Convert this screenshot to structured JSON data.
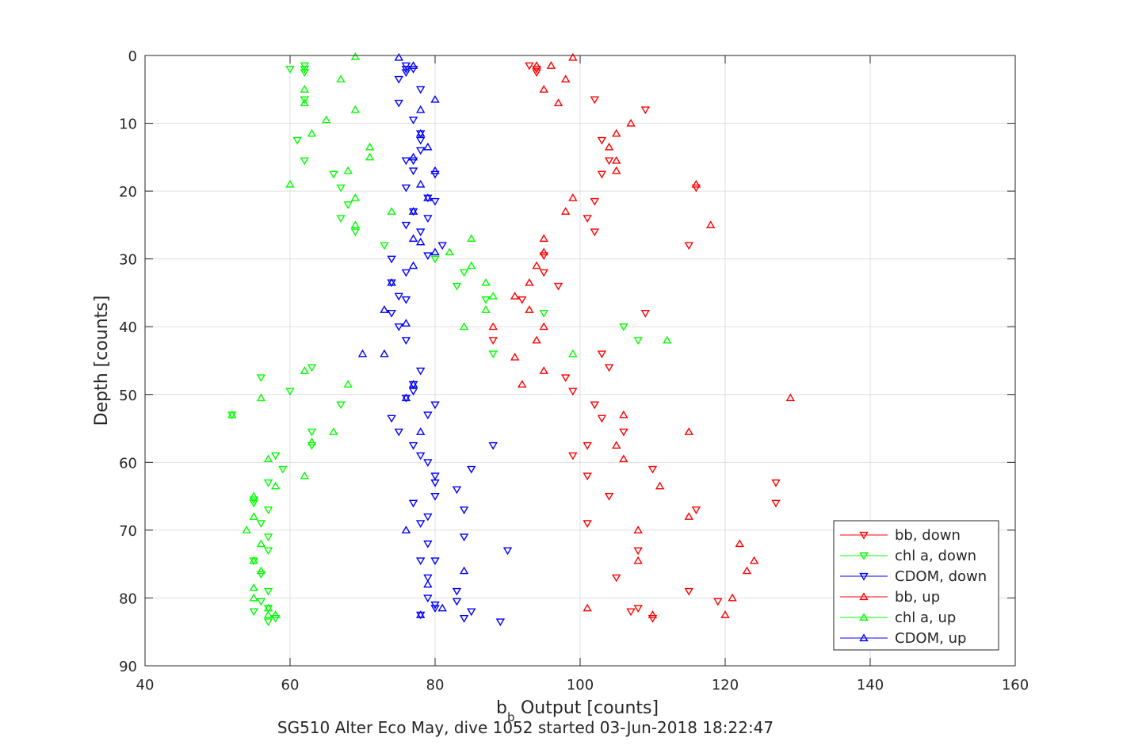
{
  "chart_data": {
    "type": "scatter",
    "title": "SG510 Alter Eco May, dive 1052 started 03-Jun-2018 18:22:47",
    "xlabel_main": "b",
    "xlabel_sub": "b",
    "xlabel_rest": " Output [counts]",
    "ylabel": "Depth [counts]",
    "xlim": [
      40,
      160
    ],
    "ylim": [
      0,
      90
    ],
    "y_reversed": true,
    "x_ticks": [
      40,
      60,
      80,
      100,
      120,
      140,
      160
    ],
    "y_ticks": [
      0,
      10,
      20,
      30,
      40,
      50,
      60,
      70,
      80,
      90
    ],
    "grid": true,
    "legend_position": "bottom-right",
    "series": [
      {
        "name": "bb, down",
        "color": "#ff0000",
        "marker": "triangle-down",
        "points": [
          [
            93,
            1.5
          ],
          [
            94,
            2
          ],
          [
            94,
            2.5
          ],
          [
            102,
            6.5
          ],
          [
            109,
            8
          ],
          [
            103,
            12.5
          ],
          [
            104,
            15.5
          ],
          [
            103,
            17.5
          ],
          [
            116,
            19.5
          ],
          [
            102,
            21.5
          ],
          [
            101,
            24
          ],
          [
            102,
            26
          ],
          [
            115,
            28
          ],
          [
            95,
            29.5
          ],
          [
            95,
            32
          ],
          [
            97,
            34
          ],
          [
            92,
            36
          ],
          [
            109,
            38
          ],
          [
            88,
            42
          ],
          [
            103,
            44
          ],
          [
            104,
            46
          ],
          [
            98,
            47.5
          ],
          [
            99,
            49.5
          ],
          [
            102,
            51.5
          ],
          [
            103,
            53.5
          ],
          [
            106,
            55.5
          ],
          [
            101,
            57.5
          ],
          [
            99,
            59
          ],
          [
            110,
            61
          ],
          [
            101,
            62
          ],
          [
            104,
            65
          ],
          [
            127,
            63
          ],
          [
            127,
            66
          ],
          [
            116,
            67
          ],
          [
            101,
            69
          ],
          [
            108,
            73
          ],
          [
            105,
            77
          ],
          [
            115,
            79
          ],
          [
            119,
            80.5
          ],
          [
            108,
            81.5
          ],
          [
            107,
            82
          ],
          [
            110,
            83
          ]
        ]
      },
      {
        "name": "chl a, down",
        "color": "#00ff00",
        "marker": "triangle-down",
        "points": [
          [
            60,
            2
          ],
          [
            62,
            1.5
          ],
          [
            62,
            2
          ],
          [
            62,
            2.5
          ],
          [
            62,
            6.5
          ],
          [
            61,
            12.5
          ],
          [
            62,
            15.5
          ],
          [
            66,
            17.5
          ],
          [
            67,
            19.5
          ],
          [
            68,
            22
          ],
          [
            67,
            24
          ],
          [
            69,
            26
          ],
          [
            73,
            28
          ],
          [
            80,
            30
          ],
          [
            84,
            32
          ],
          [
            83,
            34
          ],
          [
            87,
            36
          ],
          [
            95,
            38
          ],
          [
            106,
            40
          ],
          [
            108,
            42
          ],
          [
            88,
            44
          ],
          [
            63,
            46
          ],
          [
            56,
            47.5
          ],
          [
            60,
            49.5
          ],
          [
            67,
            51.5
          ],
          [
            52,
            53
          ],
          [
            63,
            55.5
          ],
          [
            63,
            57.5
          ],
          [
            58,
            59
          ],
          [
            59,
            61
          ],
          [
            57,
            63
          ],
          [
            55,
            65.5
          ],
          [
            55,
            66
          ],
          [
            57,
            67
          ],
          [
            56,
            69
          ],
          [
            57,
            71
          ],
          [
            57,
            73
          ],
          [
            55,
            74.5
          ],
          [
            56,
            76.5
          ],
          [
            57,
            79
          ],
          [
            56,
            80.5
          ],
          [
            57,
            81.5
          ],
          [
            55,
            82
          ],
          [
            58,
            83
          ],
          [
            57,
            83.5
          ]
        ]
      },
      {
        "name": "CDOM, down",
        "color": "#0000ff",
        "marker": "triangle-down",
        "points": [
          [
            76,
            1.5
          ],
          [
            76,
            2
          ],
          [
            76,
            2.5
          ],
          [
            77,
            2
          ],
          [
            75,
            3.5
          ],
          [
            78,
            5
          ],
          [
            75,
            7
          ],
          [
            77,
            9.5
          ],
          [
            78,
            11.5
          ],
          [
            78,
            12.5
          ],
          [
            78,
            14
          ],
          [
            77,
            15.5
          ],
          [
            76,
            15.5
          ],
          [
            77,
            17
          ],
          [
            80,
            17.5
          ],
          [
            76,
            19.5
          ],
          [
            79,
            21
          ],
          [
            80,
            21.5
          ],
          [
            77,
            23
          ],
          [
            79,
            24
          ],
          [
            76,
            25
          ],
          [
            78,
            26
          ],
          [
            81,
            28
          ],
          [
            79,
            29.5
          ],
          [
            74,
            30
          ],
          [
            76,
            32
          ],
          [
            74,
            33.5
          ],
          [
            75,
            35.5
          ],
          [
            76,
            36
          ],
          [
            74,
            38
          ],
          [
            75,
            40
          ],
          [
            76,
            42
          ],
          [
            78,
            46.5
          ],
          [
            77,
            48.5
          ],
          [
            77,
            49.5
          ],
          [
            76,
            50.5
          ],
          [
            80,
            51.5
          ],
          [
            79,
            53
          ],
          [
            74,
            53.5
          ],
          [
            75,
            55.5
          ],
          [
            77,
            57.5
          ],
          [
            88,
            57.5
          ],
          [
            78,
            59
          ],
          [
            79,
            60
          ],
          [
            80,
            62
          ],
          [
            80,
            63
          ],
          [
            85,
            61
          ],
          [
            83,
            64
          ],
          [
            80,
            65
          ],
          [
            77,
            66
          ],
          [
            84,
            67
          ],
          [
            79,
            68
          ],
          [
            78,
            69
          ],
          [
            84,
            71
          ],
          [
            79,
            72
          ],
          [
            90,
            73
          ],
          [
            78,
            74.5
          ],
          [
            80,
            74.5
          ],
          [
            79,
            77
          ],
          [
            83,
            79
          ],
          [
            79,
            80
          ],
          [
            83,
            80.5
          ],
          [
            80,
            81
          ],
          [
            80,
            81.5
          ],
          [
            78,
            82.5
          ],
          [
            84,
            83
          ],
          [
            85,
            82
          ],
          [
            89,
            83.5
          ]
        ]
      },
      {
        "name": "bb, up",
        "color": "#ff0000",
        "marker": "triangle-up",
        "points": [
          [
            99,
            0.3
          ],
          [
            94,
            1.5
          ],
          [
            96,
            1.5
          ],
          [
            98,
            3.5
          ],
          [
            95,
            5
          ],
          [
            97,
            7
          ],
          [
            107,
            10
          ],
          [
            105,
            11.5
          ],
          [
            104,
            13.5
          ],
          [
            105,
            15.5
          ],
          [
            105,
            17
          ],
          [
            116,
            19
          ],
          [
            99,
            21
          ],
          [
            98,
            23
          ],
          [
            118,
            25
          ],
          [
            95,
            27
          ],
          [
            95,
            29
          ],
          [
            94,
            31
          ],
          [
            93,
            33.5
          ],
          [
            91,
            35.5
          ],
          [
            93,
            37.5
          ],
          [
            95,
            40
          ],
          [
            88,
            40
          ],
          [
            94,
            42
          ],
          [
            91,
            44.5
          ],
          [
            95,
            46.5
          ],
          [
            92,
            48.5
          ],
          [
            129,
            50.5
          ],
          [
            106,
            53
          ],
          [
            115,
            55.5
          ],
          [
            105,
            57.5
          ],
          [
            106,
            59.5
          ],
          [
            111,
            63.5
          ],
          [
            115,
            68
          ],
          [
            108,
            70
          ],
          [
            122,
            72
          ],
          [
            124,
            74.5
          ],
          [
            108,
            74.5
          ],
          [
            123,
            76
          ],
          [
            121,
            80
          ],
          [
            101,
            81.5
          ],
          [
            120,
            82.5
          ],
          [
            110,
            82.5
          ]
        ]
      },
      {
        "name": "chl a, up",
        "color": "#00ff00",
        "marker": "triangle-up",
        "points": [
          [
            69,
            0.2
          ],
          [
            67,
            3.5
          ],
          [
            62,
            5
          ],
          [
            62,
            7
          ],
          [
            69,
            8
          ],
          [
            65,
            9.5
          ],
          [
            63,
            11.5
          ],
          [
            71,
            13.5
          ],
          [
            71,
            15
          ],
          [
            68,
            17
          ],
          [
            60,
            19
          ],
          [
            69,
            21
          ],
          [
            74,
            23
          ],
          [
            69,
            25
          ],
          [
            85,
            27
          ],
          [
            82,
            29
          ],
          [
            85,
            31
          ],
          [
            87,
            33.5
          ],
          [
            88,
            35.5
          ],
          [
            87,
            37.5
          ],
          [
            84,
            40
          ],
          [
            112,
            42
          ],
          [
            99,
            44
          ],
          [
            62,
            46.5
          ],
          [
            68,
            48.5
          ],
          [
            56,
            50.5
          ],
          [
            52,
            53
          ],
          [
            66,
            55.5
          ],
          [
            63,
            57
          ],
          [
            57,
            59.5
          ],
          [
            62,
            62
          ],
          [
            58,
            63.5
          ],
          [
            55,
            65
          ],
          [
            55,
            68
          ],
          [
            54,
            70
          ],
          [
            56,
            72
          ],
          [
            55,
            74.5
          ],
          [
            56,
            76
          ],
          [
            55,
            78.5
          ],
          [
            55,
            80
          ],
          [
            57,
            81.5
          ],
          [
            57,
            82.5
          ],
          [
            58,
            82.5
          ]
        ]
      },
      {
        "name": "CDOM, up",
        "color": "#0000ff",
        "marker": "triangle-up",
        "points": [
          [
            75,
            0.3
          ],
          [
            77,
            1.5
          ],
          [
            80,
            6.5
          ],
          [
            78,
            8
          ],
          [
            78,
            11.5
          ],
          [
            79,
            13.5
          ],
          [
            77,
            15
          ],
          [
            80,
            17
          ],
          [
            78,
            19
          ],
          [
            79,
            21
          ],
          [
            77,
            23
          ],
          [
            77,
            27
          ],
          [
            78,
            27.5
          ],
          [
            80,
            29
          ],
          [
            77,
            31
          ],
          [
            74,
            33.5
          ],
          [
            73,
            37.5
          ],
          [
            76,
            39.5
          ],
          [
            70,
            44
          ],
          [
            73,
            44
          ],
          [
            77,
            48.5
          ],
          [
            76,
            50.5
          ],
          [
            78,
            55.5
          ],
          [
            76,
            70
          ],
          [
            81,
            81.5
          ],
          [
            79,
            78
          ],
          [
            84,
            76
          ],
          [
            78,
            82.5
          ]
        ]
      }
    ]
  }
}
